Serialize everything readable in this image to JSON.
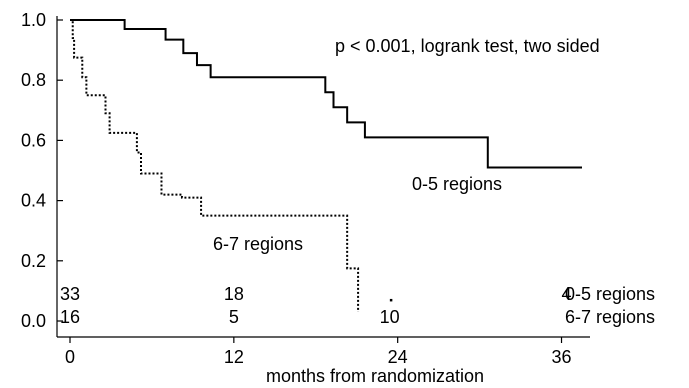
{
  "chart_data": {
    "type": "line",
    "xlabel": "months from randomization",
    "ylabel": "",
    "xlim": [
      0,
      37.5
    ],
    "ylim": [
      0,
      1.0
    ],
    "xticks": [
      "0",
      "12",
      "24",
      "36"
    ],
    "yticks": [
      "0.0",
      "0.2",
      "0.4",
      "0.6",
      "0.8",
      "1.0"
    ],
    "annotation": "p < 0.001, logrank test, two sided",
    "series": [
      {
        "name": "0-5 regions",
        "style": "solid",
        "steps": [
          [
            0,
            1.0
          ],
          [
            4,
            0.97
          ],
          [
            7,
            0.935
          ],
          [
            8.3,
            0.89
          ],
          [
            9.3,
            0.85
          ],
          [
            10.3,
            0.81
          ],
          [
            18.7,
            0.76
          ],
          [
            19.3,
            0.71
          ],
          [
            20.3,
            0.66
          ],
          [
            21.6,
            0.61
          ],
          [
            30.6,
            0.51
          ],
          [
            37.5,
            0.51
          ]
        ]
      },
      {
        "name": "6-7 regions",
        "style": "dotted",
        "steps": [
          [
            0,
            1.0
          ],
          [
            0.2,
            0.94
          ],
          [
            0.3,
            0.875
          ],
          [
            0.9,
            0.81
          ],
          [
            1.2,
            0.75
          ],
          [
            2.6,
            0.69
          ],
          [
            2.9,
            0.625
          ],
          [
            4.9,
            0.56
          ],
          [
            5.2,
            0.49
          ],
          [
            6.7,
            0.42
          ],
          [
            8.2,
            0.41
          ],
          [
            9.6,
            0.35
          ],
          [
            20.3,
            0.175
          ],
          [
            21.1,
            0.03
          ]
        ],
        "censored": [
          [
            23.5,
            0.07
          ]
        ]
      }
    ],
    "risk_table": {
      "times": [
        0,
        12,
        24,
        36
      ],
      "rows": [
        {
          "label": "0-5 regions",
          "counts": [
            "33",
            "18",
            "",
            "4"
          ]
        },
        {
          "label": "6-7 regions",
          "counts": [
            "16",
            "5",
            "10",
            ""
          ]
        }
      ]
    }
  }
}
